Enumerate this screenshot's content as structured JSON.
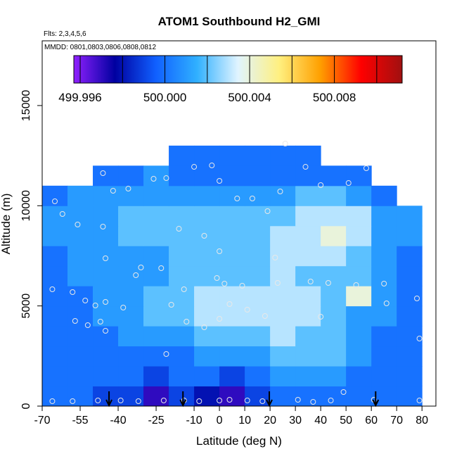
{
  "chart_data": {
    "type": "heatmap",
    "title": "ATOM1 Southbound H2_GMI",
    "annotations": [
      "Flts: 2,3,4,5,6",
      "MMDD: 0801,0803,0806,0808,0812"
    ],
    "x_label": "Latitude (deg N)",
    "y_label": "Altitude (m)",
    "xlim": [
      -70,
      85.5
    ],
    "ylim": [
      0,
      18230
    ],
    "xticks": [
      -70,
      -55,
      -40,
      -25,
      -10,
      0,
      10,
      20,
      30,
      40,
      50,
      60,
      70,
      80
    ],
    "yticks": [
      0,
      5000,
      10000,
      15000
    ],
    "x_edges": [
      -70,
      -60,
      -50,
      -40,
      -30,
      -20,
      -10,
      0,
      10,
      20,
      30,
      40,
      50,
      60,
      70,
      80
    ],
    "y_edges": [
      0,
      1000,
      2000,
      3000,
      4000,
      5000,
      6000,
      7000,
      8000,
      9000,
      10000,
      11000,
      12000,
      13000
    ],
    "z": [
      [
        500.0,
        500.0,
        499.999,
        499.999,
        499.997,
        499.999,
        499.998,
        499.997,
        499.999,
        500.0,
        500.0,
        500.0,
        500.0,
        500.0,
        500.0
      ],
      [
        500.0,
        500.0,
        500.0,
        500.0,
        499.999,
        500.0,
        500.0,
        499.999,
        500.0,
        500.001,
        500.001,
        500.001,
        500.0,
        500.0,
        500.0
      ],
      [
        500.0,
        500.0,
        500.0,
        500.0,
        500.0,
        500.0,
        500.001,
        500.001,
        500.001,
        500.002,
        500.002,
        500.002,
        500.001,
        500.0,
        500.0
      ],
      [
        500.0,
        500.0,
        500.0,
        500.001,
        500.001,
        500.001,
        500.002,
        500.002,
        500.002,
        500.003,
        500.002,
        500.002,
        500.001,
        500.0,
        500.0
      ],
      [
        500.0,
        500.0,
        500.001,
        500.001,
        500.002,
        500.002,
        500.003,
        500.003,
        500.003,
        500.003,
        500.003,
        500.002,
        500.001,
        500.001,
        500.0
      ],
      [
        500.0,
        500.0,
        500.001,
        500.001,
        500.002,
        500.002,
        500.003,
        500.003,
        500.003,
        500.003,
        500.003,
        500.002,
        500.004,
        500.001,
        500.0
      ],
      [
        500.0,
        500.001,
        500.001,
        500.001,
        500.001,
        500.002,
        500.002,
        500.002,
        500.002,
        500.003,
        500.002,
        500.002,
        500.002,
        500.001,
        500.0
      ],
      [
        500.0,
        500.001,
        500.001,
        500.001,
        500.001,
        500.002,
        500.002,
        500.002,
        500.002,
        500.003,
        500.003,
        500.003,
        500.002,
        500.001,
        500.0
      ],
      [
        500.001,
        500.001,
        500.001,
        500.002,
        500.002,
        500.002,
        500.002,
        500.002,
        500.002,
        500.003,
        500.003,
        500.004,
        500.003,
        500.001,
        500.001
      ],
      [
        500.001,
        500.001,
        500.001,
        500.002,
        500.002,
        500.002,
        500.002,
        500.002,
        500.002,
        500.002,
        500.003,
        500.003,
        500.003,
        500.001,
        500.001
      ],
      [
        500.0,
        500.001,
        500.001,
        500.001,
        500.001,
        500.001,
        500.001,
        500.001,
        500.001,
        500.001,
        500.002,
        500.002,
        500.001,
        500.0,
        null
      ],
      [
        null,
        null,
        500.0,
        500.0,
        500.001,
        500.0,
        500.0,
        500.0,
        500.0,
        500.0,
        500.0,
        500.0,
        500.0,
        null,
        null
      ],
      [
        null,
        null,
        null,
        null,
        null,
        500.0,
        500.0,
        500.0,
        500.0,
        500.0,
        500.0,
        null,
        null,
        null,
        null
      ]
    ],
    "colorbar": {
      "lim": [
        499.9957,
        500.0112
      ],
      "ticks": [
        499.996,
        {
          "value": 500.0,
          "label": "500.000"
        },
        500.004,
        500.008
      ],
      "breaks": [
        499.998,
        500.002,
        500.006,
        500.01
      ],
      "colors": [
        "#9020ff",
        "#0000a0",
        "#1060ff",
        "#30b0ff",
        "#e0f4ff",
        "#fff080",
        "#ffa000",
        "#ff0000",
        "#a01010"
      ]
    },
    "points": {
      "x": [
        -46,
        -26,
        -21,
        -10,
        -3,
        0,
        26,
        34,
        40,
        51,
        58,
        -42,
        -36,
        -65,
        -62,
        -56,
        -46,
        -16,
        -6,
        7,
        19,
        24,
        13,
        0,
        22,
        -45,
        -31,
        -23,
        -33,
        -14,
        -1,
        2,
        9,
        23,
        36,
        43,
        54,
        65,
        -66,
        -58,
        -53,
        -45,
        -38,
        -49,
        -19,
        4,
        11,
        18,
        40,
        66,
        78,
        -57,
        -52,
        -47,
        -45,
        -13,
        -6,
        0,
        79,
        -21,
        49,
        -66,
        -58,
        -48,
        -39,
        -32,
        -22,
        -14,
        -8,
        0,
        4,
        11,
        17,
        31,
        37,
        44,
        61,
        79
      ],
      "y": [
        11626,
        11345,
        11380,
        11942,
        12012,
        11240,
        13100,
        11942,
        11029,
        11134,
        11872,
        10748,
        10853,
        10221,
        9589,
        9062,
        8957,
        8851,
        8500,
        10362,
        9730,
        10713,
        10362,
        7727,
        7411,
        7376,
        6920,
        6884,
        6533,
        5831,
        6393,
        6112,
        6006,
        6147,
        6217,
        6147,
        6041,
        6112,
        5831,
        5690,
        5269,
        5198,
        4917,
        5023,
        5058,
        5093,
        4812,
        4496,
        4461,
        5128,
        5374,
        4250,
        4039,
        4215,
        3758,
        4215,
        3934,
        4356,
        3372,
        2599,
        703,
        246,
        246,
        281,
        281,
        246,
        281,
        281,
        246,
        281,
        316,
        281,
        246,
        316,
        211,
        281,
        316,
        281
      ],
      "color": "#e8e8e8"
    },
    "arrows": [
      -43.6,
      -14.4,
      19.7,
      61.7
    ]
  }
}
